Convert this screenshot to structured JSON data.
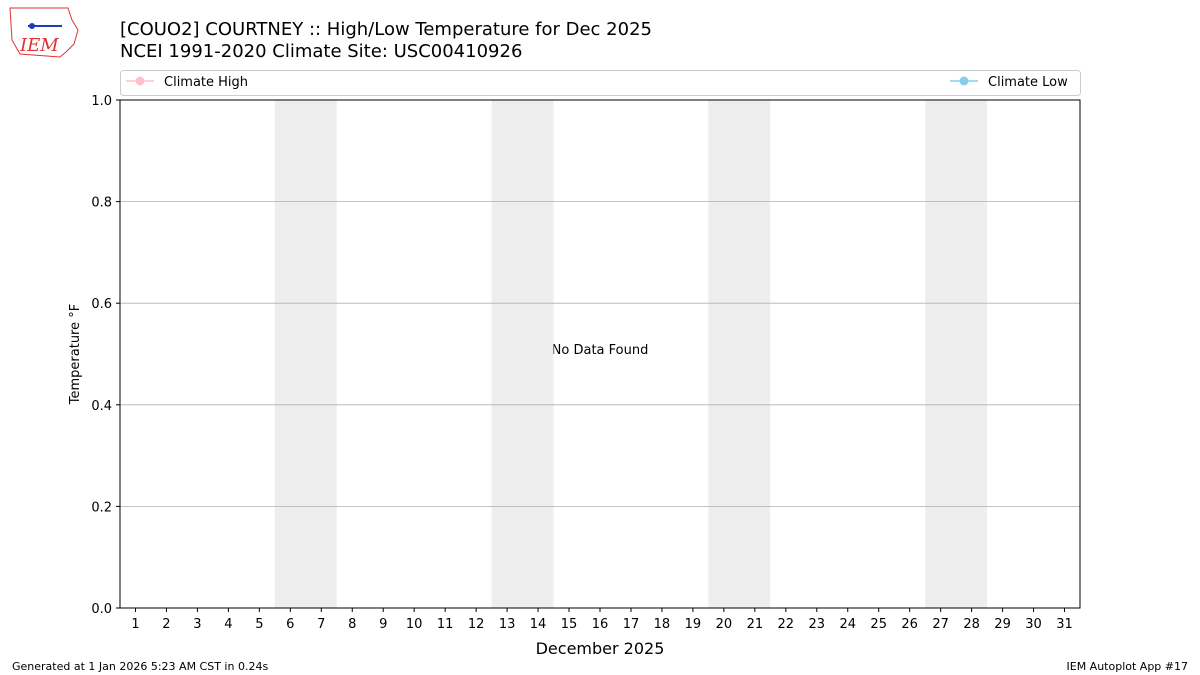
{
  "logo_text": "IEM",
  "chart_data": {
    "type": "line",
    "title": "[COUO2] COURTNEY :: High/Low Temperature for Dec 2025",
    "subtitle": "NCEI 1991-2020 Climate Site: USC00410926",
    "x_label": "December 2025",
    "y_label": "Temperature °F",
    "annotation": "No Data Found",
    "x": [
      1,
      2,
      3,
      4,
      5,
      6,
      7,
      8,
      9,
      10,
      11,
      12,
      13,
      14,
      15,
      16,
      17,
      18,
      19,
      20,
      21,
      22,
      23,
      24,
      25,
      26,
      27,
      28,
      29,
      30,
      31
    ],
    "series": [
      {
        "name": "Climate High",
        "color": "pink",
        "values": [
          null,
          null,
          null,
          null,
          null,
          null,
          null,
          null,
          null,
          null,
          null,
          null,
          null,
          null,
          null,
          null,
          null,
          null,
          null,
          null,
          null,
          null,
          null,
          null,
          null,
          null,
          null,
          null,
          null,
          null,
          null
        ]
      },
      {
        "name": "Climate Low",
        "color": "skyblue",
        "values": [
          null,
          null,
          null,
          null,
          null,
          null,
          null,
          null,
          null,
          null,
          null,
          null,
          null,
          null,
          null,
          null,
          null,
          null,
          null,
          null,
          null,
          null,
          null,
          null,
          null,
          null,
          null,
          null,
          null,
          null,
          null
        ]
      }
    ],
    "xlim": [
      0.5,
      31.5
    ],
    "xticks": [
      1,
      2,
      3,
      4,
      5,
      6,
      7,
      8,
      9,
      10,
      11,
      12,
      13,
      14,
      15,
      16,
      17,
      18,
      19,
      20,
      21,
      22,
      23,
      24,
      25,
      26,
      27,
      28,
      29,
      30,
      31
    ],
    "ylim": [
      0,
      1
    ],
    "yticks": [
      {
        "value": 0,
        "label": "0.0"
      },
      {
        "value": 0.2,
        "label": "0.2"
      },
      {
        "value": 0.4,
        "label": "0.4"
      },
      {
        "value": 0.6,
        "label": "0.6"
      },
      {
        "value": 0.8,
        "label": "0.8"
      },
      {
        "value": 1,
        "label": "1.0"
      }
    ],
    "shaded_spans": [
      [
        5.5,
        7.5
      ],
      [
        12.5,
        14.5
      ],
      [
        19.5,
        21.5
      ],
      [
        26.5,
        28.5
      ]
    ],
    "grid": true,
    "legend": "top",
    "footer_left": "Generated at 1 Jan 2026 5:23 AM CST in 0.24s",
    "footer_right": "IEM Autoplot App #17"
  }
}
